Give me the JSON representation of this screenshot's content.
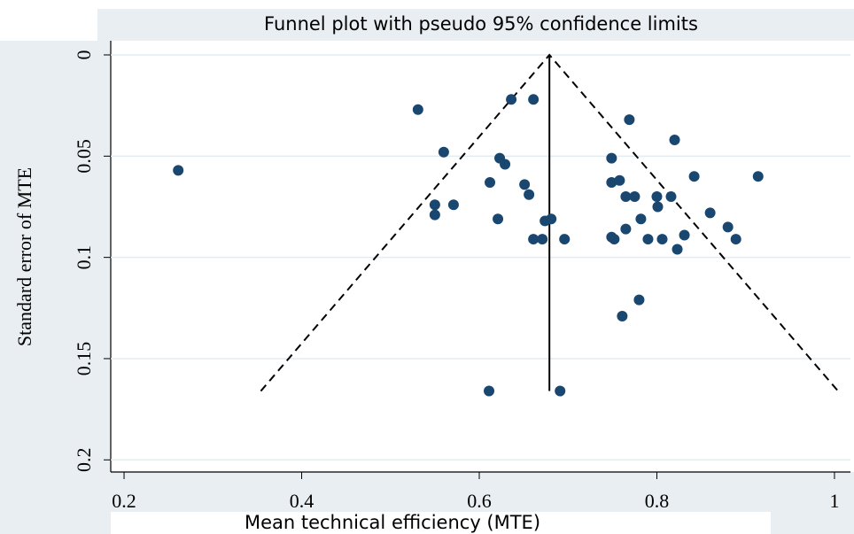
{
  "chart_data": {
    "type": "scatter",
    "title": "Funnel plot with pseudo 95% confidence limits",
    "xlabel": "Mean technical efficiency (MTE)",
    "ylabel": "Standard error of MTE",
    "color": "#1a476f",
    "x": [
      0.261,
      0.531,
      0.56,
      0.636,
      0.661,
      0.55,
      0.55,
      0.571,
      0.612,
      0.623,
      0.629,
      0.621,
      0.651,
      0.656,
      0.661,
      0.671,
      0.674,
      0.681,
      0.696,
      0.611,
      0.691,
      0.749,
      0.749,
      0.758,
      0.765,
      0.769,
      0.775,
      0.749,
      0.752,
      0.765,
      0.782,
      0.79,
      0.8,
      0.801,
      0.806,
      0.816,
      0.82,
      0.823,
      0.831,
      0.842,
      0.86,
      0.88,
      0.889,
      0.914,
      0.78,
      0.761
    ],
    "values": [
      0.057,
      0.027,
      0.048,
      0.022,
      0.022,
      0.074,
      0.079,
      0.074,
      0.063,
      0.051,
      0.054,
      0.081,
      0.064,
      0.069,
      0.091,
      0.091,
      0.082,
      0.081,
      0.091,
      0.166,
      0.166,
      0.051,
      0.063,
      0.062,
      0.07,
      0.032,
      0.07,
      0.09,
      0.091,
      0.086,
      0.081,
      0.091,
      0.07,
      0.075,
      0.091,
      0.07,
      0.042,
      0.096,
      0.089,
      0.06,
      0.078,
      0.085,
      0.091,
      0.06,
      0.121,
      0.129
    ],
    "funnel": {
      "apex": [
        0.679,
        0
      ],
      "left": [
        0.354,
        0.166
      ],
      "right": [
        1.004,
        0.166
      ]
    },
    "xlim": [
      0.185,
      1.018
    ],
    "xticks": [
      0.2,
      0.4,
      0.6,
      0.8,
      1
    ],
    "ylim": [
      -0.007,
      0.206
    ],
    "yticks": [
      0,
      0.05,
      0.1,
      0.15,
      0.2
    ],
    "y_inverted": true,
    "grid": true
  }
}
